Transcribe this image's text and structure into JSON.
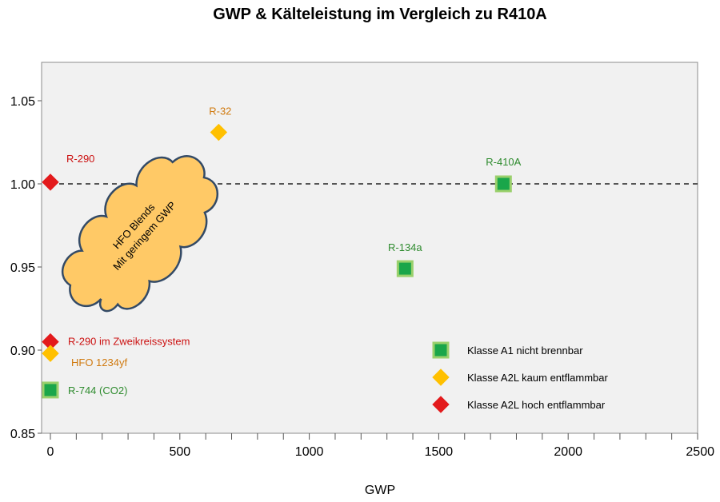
{
  "chart_data": {
    "type": "scatter",
    "title": "GWP & Kälteleistung im Vergleich zu R410A",
    "xlabel": "GWP",
    "ylabel": "",
    "xlim": [
      -20,
      2500
    ],
    "ylim": [
      0.85,
      1.07
    ],
    "xticks": [
      0,
      500,
      1000,
      1500,
      2000,
      2500
    ],
    "xtick_labels": [
      "0",
      "500",
      "1000",
      "1500",
      "2000",
      "2500"
    ],
    "yticks": [
      0.85,
      0.9,
      0.95,
      1.0,
      1.05
    ],
    "ytick_labels": [
      "0.85",
      "0.90",
      "0.95",
      "1.00",
      "1.05"
    ],
    "reference_line": {
      "y": 1.0,
      "style": "dashed"
    },
    "legend": [
      {
        "name": "Klasse A1 nicht brennbar",
        "marker": "square",
        "color": "#1aa64a",
        "border": "#9ad06c"
      },
      {
        "name": "Klasse A2L kaum entflammbar",
        "marker": "diamond",
        "color": "#ffc000",
        "border": "#ffc000"
      },
      {
        "name": "Klasse A2L hoch entflammbar",
        "marker": "diamond",
        "color": "#e31a1c",
        "border": "#e31a1c"
      }
    ],
    "points": [
      {
        "label": "R-290",
        "x": 0,
        "y": 1.001,
        "class": 2,
        "label_color": "#cc1111"
      },
      {
        "label": "R-32",
        "x": 650,
        "y": 1.031,
        "class": 1,
        "label_color": "#d07a10"
      },
      {
        "label": "R-410A",
        "x": 1750,
        "y": 1.0,
        "class": 0,
        "label_color": "#2e8b2e"
      },
      {
        "label": "R-134a",
        "x": 1370,
        "y": 0.949,
        "class": 0,
        "label_color": "#2e8b2e"
      },
      {
        "label": "R-290 im Zweikreissystem",
        "x": 0,
        "y": 0.905,
        "class": 2,
        "label_color": "#cc1111"
      },
      {
        "label": "HFO 1234yf",
        "x": 0,
        "y": 0.898,
        "class": 1,
        "label_color": "#d07a10"
      },
      {
        "label": "R-744 (CO2)",
        "x": 0,
        "y": 0.876,
        "class": 0,
        "label_color": "#2e8b2e"
      }
    ],
    "annotation": {
      "shape": "cloud",
      "lines": [
        "HFO Blends",
        "Mit geringem GWP"
      ],
      "fill": "#ffc966",
      "stroke": "#334a66"
    }
  }
}
